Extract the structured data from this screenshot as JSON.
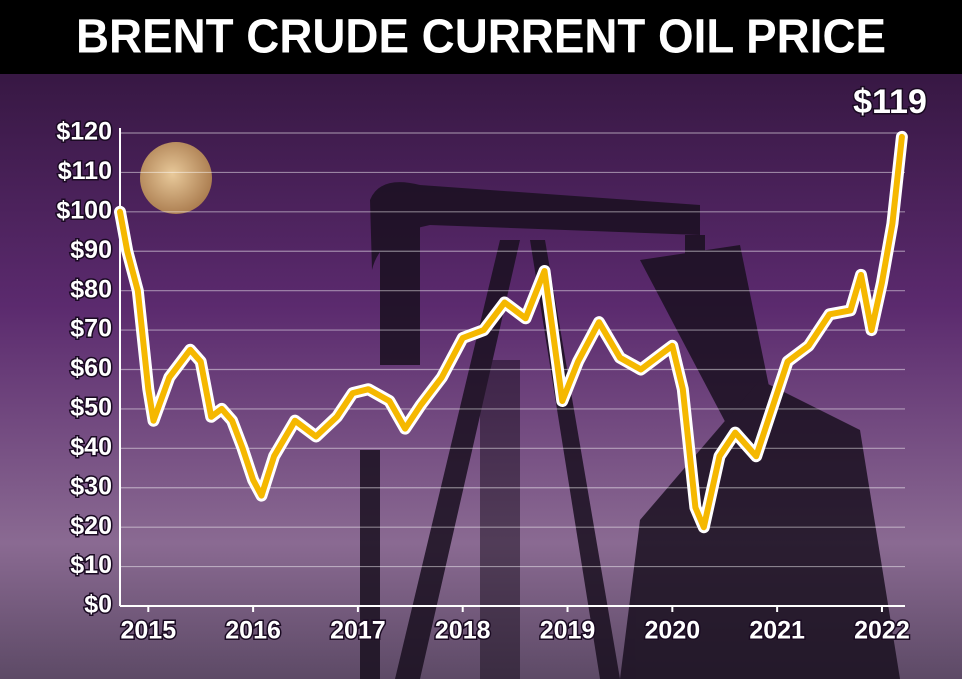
{
  "chart_data": {
    "type": "line",
    "title": "BRENT CRUDE CURRENT OIL PRICE",
    "annotation": "$119",
    "x": [
      2014.73,
      2014.8,
      2014.9,
      2015.0,
      2015.05,
      2015.2,
      2015.4,
      2015.5,
      2015.6,
      2015.7,
      2015.8,
      2015.9,
      2016.0,
      2016.08,
      2016.2,
      2016.4,
      2016.5,
      2016.6,
      2016.8,
      2016.95,
      2017.1,
      2017.3,
      2017.45,
      2017.6,
      2017.8,
      2018.0,
      2018.2,
      2018.4,
      2018.6,
      2018.78,
      2018.95,
      2019.1,
      2019.3,
      2019.5,
      2019.7,
      2019.9,
      2020.0,
      2020.1,
      2020.22,
      2020.3,
      2020.45,
      2020.6,
      2020.8,
      2020.95,
      2021.1,
      2021.3,
      2021.5,
      2021.7,
      2021.8,
      2021.9,
      2022.0,
      2022.1,
      2022.19
    ],
    "series": [
      {
        "name": "Brent crude",
        "color": "#f5b800",
        "values": [
          100,
          90,
          80,
          55,
          47,
          58,
          65,
          62,
          48,
          50,
          47,
          40,
          32,
          28,
          38,
          47,
          45,
          43,
          48,
          54,
          55,
          52,
          45,
          51,
          58,
          68,
          70,
          77,
          73,
          85,
          52,
          62,
          72,
          63,
          60,
          64,
          66,
          55,
          25,
          20,
          38,
          44,
          38,
          50,
          62,
          66,
          74,
          75,
          84,
          70,
          82,
          97,
          119
        ]
      }
    ],
    "xlim": [
      2014.73,
      2022.22
    ],
    "xticks": [
      2015,
      2016,
      2017,
      2018,
      2019,
      2020,
      2021,
      2022
    ],
    "ylim": [
      0,
      120
    ],
    "yticks": [
      {
        "value": 0,
        "label": "$0"
      },
      {
        "value": 10,
        "label": "$10"
      },
      {
        "value": 20,
        "label": "$20"
      },
      {
        "value": 30,
        "label": "$30"
      },
      {
        "value": 40,
        "label": "$40"
      },
      {
        "value": 50,
        "label": "$50"
      },
      {
        "value": 60,
        "label": "$60"
      },
      {
        "value": 70,
        "label": "$70"
      },
      {
        "value": 80,
        "label": "$80"
      },
      {
        "value": 90,
        "label": "$90"
      },
      {
        "value": 100,
        "label": "$100"
      },
      {
        "value": 110,
        "label": "$110"
      },
      {
        "value": 120,
        "label": "$120"
      }
    ],
    "grid": true
  }
}
